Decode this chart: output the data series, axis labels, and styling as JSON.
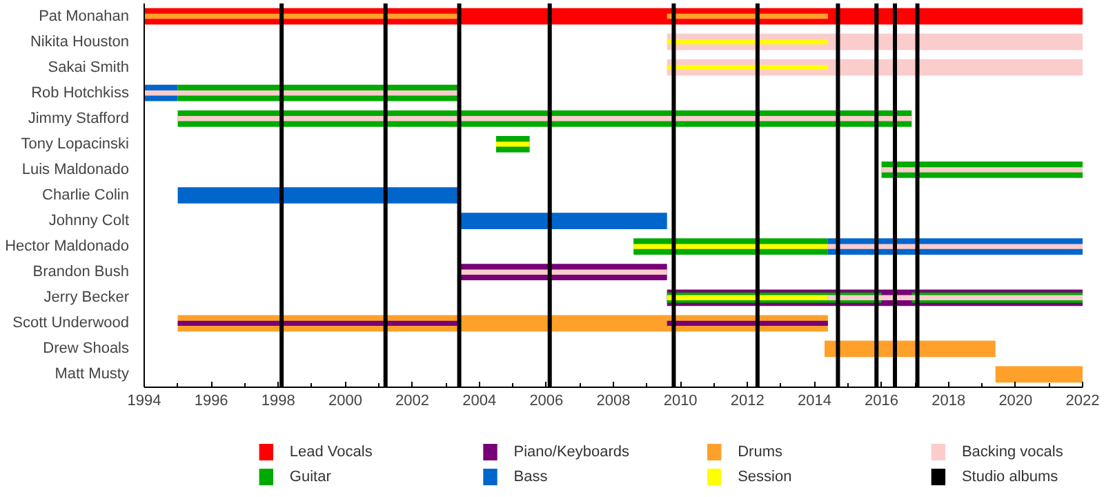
{
  "chart_data": {
    "type": "bar",
    "orientation": "horizontal",
    "categories": [
      "Pat Monahan",
      "Nikita Houston",
      "Sakai Smith",
      "Rob Hotchkiss",
      "Jimmy Stafford",
      "Tony Lopacinski",
      "Luis Maldonado",
      "Charlie Colin",
      "Johnny Colt",
      "Hector Maldonado",
      "Brandon Bush",
      "Jerry Becker",
      "Scott Underwood",
      "Drew Shoals",
      "Matt Musty"
    ],
    "xlim": [
      1994,
      2022
    ],
    "xticks": [
      1994,
      1996,
      1998,
      2000,
      2002,
      2004,
      2006,
      2008,
      2010,
      2012,
      2014,
      2016,
      2018,
      2020,
      2022
    ],
    "series": [
      {
        "name": "Lead Vocals",
        "color": "#ff0000",
        "base": [
          1994,
          null,
          null,
          null,
          null,
          null,
          null,
          null,
          null,
          null,
          null,
          null,
          null,
          null,
          null
        ],
        "values": [
          28,
          null,
          null,
          null,
          null,
          null,
          null,
          null,
          null,
          null,
          null,
          null,
          null,
          null,
          null
        ]
      },
      {
        "name": "Guitar",
        "color": "#00aa00",
        "base": [
          null,
          null,
          null,
          1995,
          1995,
          2004.5,
          2016,
          null,
          null,
          2008.6,
          null,
          null,
          null,
          null,
          null
        ],
        "values": [
          null,
          null,
          null,
          8.4,
          21.9,
          1,
          6,
          null,
          null,
          5.8,
          null,
          null,
          null,
          null,
          null
        ]
      },
      {
        "name": "Piano/Keyboards",
        "color": "#770077",
        "base": [
          null,
          null,
          null,
          null,
          null,
          null,
          null,
          null,
          null,
          null,
          2003.4,
          2009.6,
          null,
          null,
          null
        ],
        "values": [
          null,
          null,
          null,
          null,
          null,
          null,
          null,
          null,
          null,
          null,
          6.2,
          12.4,
          null,
          null,
          null
        ]
      },
      {
        "name": "Bass",
        "color": "#0066cc",
        "base": [
          null,
          null,
          null,
          1994,
          null,
          null,
          null,
          1995,
          2003.4,
          2014.4,
          null,
          null,
          null,
          null,
          null
        ],
        "values": [
          null,
          null,
          null,
          1,
          null,
          null,
          null,
          8.4,
          6.2,
          7.6,
          null,
          null,
          null,
          null,
          null
        ]
      },
      {
        "name": "Drums",
        "color": "#ffa02a",
        "base": [
          null,
          null,
          null,
          null,
          null,
          null,
          null,
          null,
          null,
          null,
          null,
          null,
          1995,
          2014.3,
          2019.4
        ],
        "values": [
          null,
          null,
          null,
          null,
          null,
          null,
          null,
          null,
          null,
          null,
          null,
          null,
          19.4,
          5.1,
          2.6
        ]
      },
      {
        "name": "Session",
        "color": "#ffff00",
        "base": [
          null,
          2009.6,
          2009.6,
          null,
          null,
          2004.5,
          null,
          null,
          null,
          2008.6,
          null,
          2009.6,
          null,
          null,
          null
        ],
        "values": [
          null,
          4.8,
          4.8,
          null,
          null,
          1,
          null,
          null,
          null,
          5.8,
          null,
          4.8,
          null,
          null,
          null
        ]
      },
      {
        "name": "Backing vocals",
        "color": "#fbcccc",
        "base": [
          null,
          2009.6,
          2009.6,
          null,
          null,
          null,
          null,
          null,
          null,
          null,
          null,
          null,
          null,
          null,
          null
        ],
        "values": [
          null,
          12.4,
          12.4,
          null,
          null,
          null,
          null,
          null,
          null,
          null,
          null,
          null,
          null,
          null,
          null
        ]
      },
      {
        "color": "#00aa00",
        "base": [
          null,
          null,
          null,
          null,
          null,
          null,
          null,
          null,
          null,
          null,
          null,
          2009.6,
          null,
          null,
          null
        ],
        "values": [
          null,
          null,
          null,
          null,
          null,
          null,
          null,
          null,
          null,
          null,
          null,
          6.4,
          null,
          null,
          null
        ]
      },
      {
        "color": "#00aa00",
        "base": [
          null,
          null,
          null,
          null,
          null,
          null,
          null,
          null,
          null,
          null,
          null,
          2016.9,
          null,
          null,
          null
        ],
        "values": [
          null,
          null,
          null,
          null,
          null,
          null,
          null,
          null,
          null,
          null,
          null,
          5.1,
          null,
          null,
          null
        ]
      },
      {
        "color": "#fbcccc",
        "base": [
          null,
          null,
          null,
          1994,
          1995,
          null,
          2016,
          null,
          null,
          2014.4,
          2003.4,
          2014.4,
          null,
          null,
          null
        ],
        "values": [
          null,
          null,
          null,
          9.4,
          21.9,
          null,
          6,
          null,
          null,
          7.6,
          6.2,
          7.6,
          null,
          null,
          null
        ]
      },
      {
        "color": "#770077",
        "base": [
          null,
          null,
          null,
          null,
          null,
          null,
          null,
          null,
          null,
          null,
          null,
          null,
          1995,
          null,
          null
        ],
        "values": [
          null,
          null,
          null,
          null,
          null,
          null,
          null,
          null,
          null,
          null,
          null,
          null,
          8.4,
          null,
          null
        ]
      },
      {
        "color": "#770077",
        "base": [
          null,
          null,
          null,
          null,
          null,
          null,
          null,
          null,
          null,
          null,
          null,
          null,
          2009.6,
          null,
          null
        ],
        "values": [
          null,
          null,
          null,
          null,
          null,
          null,
          null,
          null,
          null,
          null,
          null,
          null,
          4.8,
          null,
          null
        ]
      },
      {
        "color": "#ffa02a",
        "base": [
          1994,
          null,
          null,
          null,
          null,
          null,
          null,
          null,
          null,
          null,
          null,
          null,
          null,
          null,
          null
        ],
        "values": [
          9.4,
          null,
          null,
          null,
          null,
          null,
          null,
          null,
          null,
          null,
          null,
          null,
          null,
          null,
          null
        ]
      },
      {
        "color": "#ffa02a",
        "base": [
          2009.6,
          null,
          null,
          null,
          null,
          null,
          null,
          null,
          null,
          null,
          null,
          null,
          null,
          null,
          null
        ],
        "values": [
          4.8,
          null,
          null,
          null,
          null,
          null,
          null,
          null,
          null,
          null,
          null,
          null,
          null,
          null,
          null
        ]
      }
    ],
    "ref_lines": [
      {
        "axis": "x",
        "value": 1998.1,
        "label": "Studio albums",
        "color": "#000000"
      },
      {
        "axis": "x",
        "value": 2001.2,
        "color": "#000000"
      },
      {
        "axis": "x",
        "value": 2003.4,
        "color": "#000000"
      },
      {
        "axis": "x",
        "value": 2006.1,
        "color": "#000000"
      },
      {
        "axis": "x",
        "value": 2009.8,
        "color": "#000000"
      },
      {
        "axis": "x",
        "value": 2012.3,
        "color": "#000000"
      },
      {
        "axis": "x",
        "value": 2014.7,
        "color": "#000000"
      },
      {
        "axis": "x",
        "value": 2015.85,
        "color": "#000000"
      },
      {
        "axis": "x",
        "value": 2016.4,
        "color": "#000000"
      },
      {
        "axis": "x",
        "value": 2017.07,
        "color": "#000000"
      }
    ],
    "grid": false,
    "legend": "bottom"
  }
}
